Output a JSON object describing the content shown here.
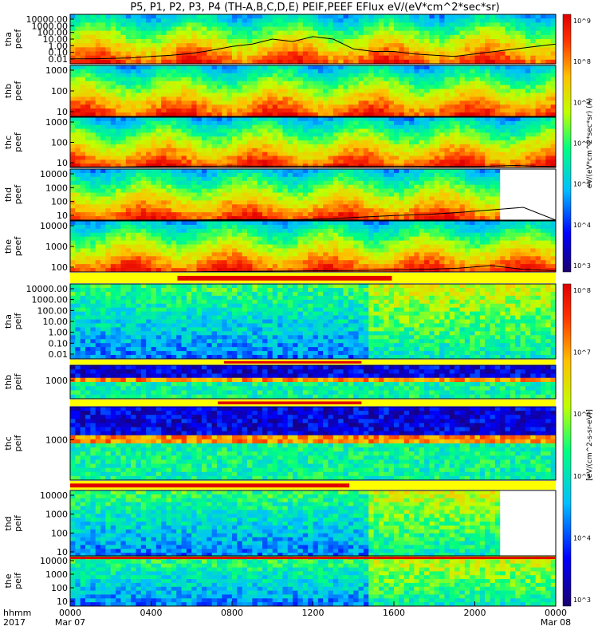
{
  "title": "P5, P1, P2, P3, P4 (TH-A,B,C,D,E) PEIF,PEEF EFlux eV/(eV*cm^2*sec*sr)",
  "time_axis": {
    "row_label_1": "hhmm",
    "row_label_2": "2017",
    "ticks": [
      {
        "t": 0,
        "label": "0000",
        "date": "Mar 07"
      },
      {
        "t": 4,
        "label": "0400",
        "date": ""
      },
      {
        "t": 8,
        "label": "0800",
        "date": ""
      },
      {
        "t": 12,
        "label": "1200",
        "date": ""
      },
      {
        "t": 16,
        "label": "1600",
        "date": ""
      },
      {
        "t": 20,
        "label": "2000",
        "date": ""
      },
      {
        "t": 24,
        "label": "0000",
        "date": "Mar 08"
      }
    ],
    "range_hours": [
      0,
      24
    ]
  },
  "colorbars": [
    {
      "label": "eV/(eV*cm^2*sec*sr) (A)",
      "ticks": [
        "10^9",
        "10^8",
        "10^7",
        "10^6",
        "10^5",
        "10^4",
        "10^3"
      ]
    },
    {
      "label": "[eV/(cm^2-s-sr-eV)]",
      "ticks": [
        "10^8",
        "10^7",
        "10^6",
        "10^5",
        "10^4",
        "10^3"
      ]
    }
  ],
  "chart_data": {
    "type": "heatmap",
    "panels": [
      {
        "name": "tha\npeef",
        "yticks": [
          "10000.00",
          "1000.00",
          "100.00",
          "10.00",
          "1.00",
          "0.10",
          "0.01"
        ],
        "line": [
          0.2,
          0.2,
          0.22,
          0.24,
          0.3,
          0.35,
          0.42,
          0.55,
          0.7,
          0.8,
          1.0,
          0.9,
          1.1,
          1.0,
          0.6,
          0.5,
          0.5,
          0.4,
          0.35,
          0.3,
          0.4,
          0.5,
          0.6,
          0.7,
          0.8
        ]
      },
      {
        "name": "thb\npeef",
        "yticks": [
          "1000",
          "100",
          "10"
        ],
        "line": []
      },
      {
        "name": "thc\npeef",
        "yticks": [
          "1000",
          "100",
          "10"
        ],
        "line": [
          0.02,
          0.02,
          0.02,
          0.03,
          0.04,
          0.05,
          0.05,
          0.05,
          0.06,
          0.05,
          0.05,
          0.05,
          0.05,
          0.05,
          0.05,
          0.05,
          0.05,
          0.05,
          0.04,
          0.04,
          0.04,
          0.06,
          0.08,
          0.05,
          0.04
        ]
      },
      {
        "name": "thd\npeef",
        "yticks": [
          "10000",
          "1000",
          "100",
          "10"
        ],
        "line": [
          0,
          0,
          0,
          0,
          0.01,
          0.02,
          0.02,
          0.02,
          0.05,
          0.12,
          0.18,
          0.22,
          0.3,
          0.4,
          0.5,
          0
        ]
      },
      {
        "name": "the\npeef",
        "yticks": [
          "10000",
          "1000",
          "100"
        ],
        "line": [
          0,
          0,
          0,
          0,
          0.01,
          0.02,
          0.03,
          0.04,
          0.05,
          0.06,
          0.08,
          0.1,
          0.15,
          0.25,
          0.1,
          0.05
        ]
      },
      {
        "name": "tha\npeif",
        "yticks": [
          "10000.00",
          "1000.00",
          "100.00",
          "10.00",
          "1.00",
          "0.10",
          "0.01"
        ],
        "line": []
      },
      {
        "name": "thb\npeif",
        "yticks": [
          "1000"
        ],
        "line": []
      },
      {
        "name": "thc\npeif",
        "yticks": [
          "1000"
        ],
        "line": []
      },
      {
        "name": "thd\npeif",
        "yticks": [
          "10000",
          "1000",
          "100",
          "10"
        ],
        "line": []
      },
      {
        "name": "the\npeif",
        "yticks": [
          "10000",
          "1000",
          "100",
          "10"
        ],
        "line": []
      }
    ],
    "mode_bars": [
      {
        "after_panel": 4,
        "segments": [
          [
            5.3,
            15.9
          ]
        ]
      },
      {
        "after_panel": 5,
        "segments": [
          [
            7.6,
            14.4
          ]
        ]
      },
      {
        "after_panel": 6,
        "segments": [
          [
            7.3,
            14.4
          ]
        ]
      },
      {
        "after_panel": 7,
        "segments": [
          [
            0,
            13.8
          ]
        ]
      },
      {
        "after_panel": 8,
        "segments": [
          [
            0,
            24
          ]
        ]
      }
    ]
  }
}
